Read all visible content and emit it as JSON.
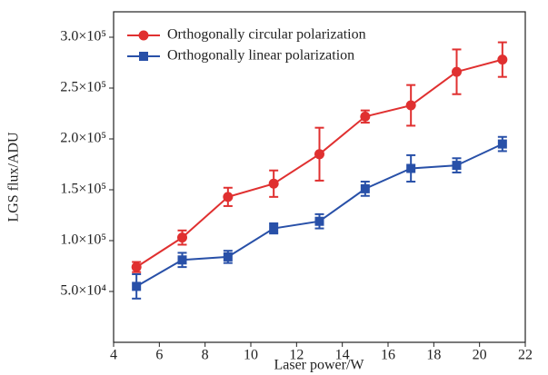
{
  "chart_data": {
    "type": "line",
    "x_label": "Laser power/W",
    "y_label": "LGS flux/ADU",
    "x": [
      5,
      7,
      9,
      11,
      13,
      15,
      17,
      19,
      21
    ],
    "series": [
      {
        "name": "Orthogonally circular polarization",
        "color": "#e03030",
        "marker": "circle",
        "values": [
          74000,
          103000,
          143000,
          156000,
          185000,
          222000,
          233000,
          266000,
          278000
        ],
        "errors": [
          5000,
          7000,
          9000,
          13000,
          26000,
          6000,
          20000,
          22000,
          17000
        ]
      },
      {
        "name": "Orthogonally linear polarization",
        "color": "#2850a8",
        "marker": "square",
        "values": [
          55000,
          81000,
          84000,
          112000,
          119000,
          151000,
          171000,
          174000,
          195000
        ],
        "errors": [
          12000,
          7000,
          6000,
          5000,
          7000,
          7000,
          13000,
          7000,
          7000
        ]
      }
    ],
    "xlim": [
      4,
      22
    ],
    "xticks": [
      4,
      6,
      8,
      10,
      12,
      14,
      16,
      18,
      20,
      22
    ],
    "ylim": [
      0,
      325000
    ],
    "yticks": [
      {
        "value": 50000,
        "label": "5.0×10⁴"
      },
      {
        "value": 100000,
        "label": "1.0×10⁵"
      },
      {
        "value": 150000,
        "label": "1.5×10⁵"
      },
      {
        "value": 200000,
        "label": "2.0×10⁵"
      },
      {
        "value": 250000,
        "label": "2.5×10⁵"
      },
      {
        "value": 300000,
        "label": "3.0×10⁵"
      }
    ],
    "legend": "upper-left"
  }
}
